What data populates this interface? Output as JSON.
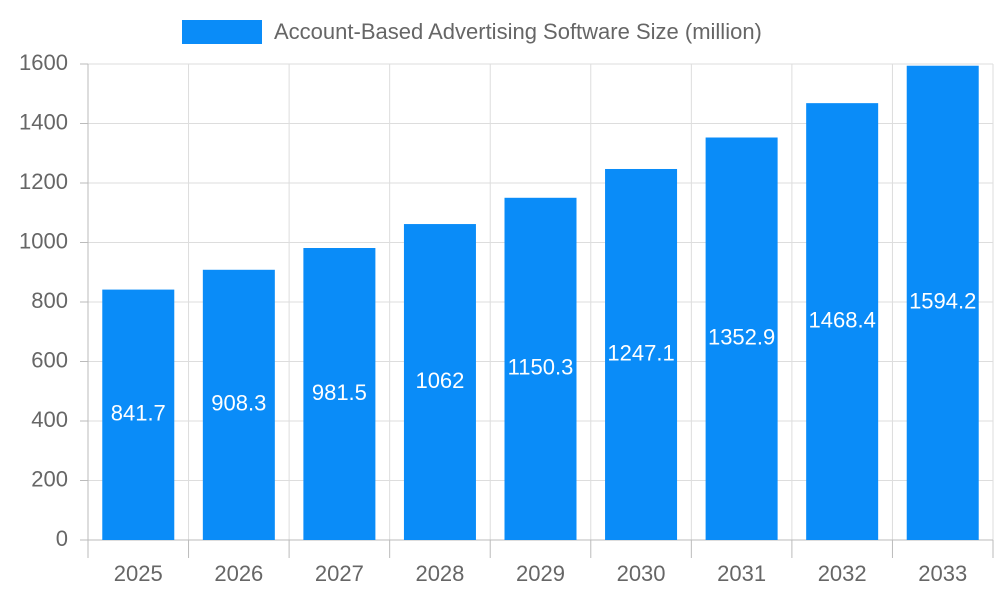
{
  "chart_data": {
    "type": "bar",
    "categories": [
      "2025",
      "2026",
      "2027",
      "2028",
      "2029",
      "2030",
      "2031",
      "2032",
      "2033"
    ],
    "series": [
      {
        "name": "Account-Based Advertising Software Size (million)",
        "color": "#0a8cf8",
        "values": [
          841.7,
          908.3,
          981.5,
          1062,
          1150.3,
          1247.1,
          1352.9,
          1468.4,
          1594.2
        ]
      }
    ],
    "ylim": [
      0,
      1600
    ],
    "yticks": [
      0,
      200,
      400,
      600,
      800,
      1000,
      1200,
      1400,
      1600
    ],
    "grid": true,
    "legend": "top"
  }
}
